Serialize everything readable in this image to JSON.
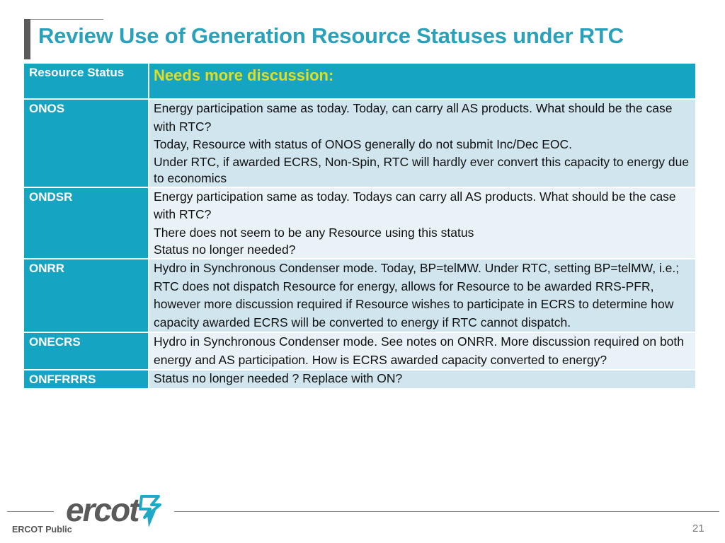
{
  "slide": {
    "title": "Review Use of Generation Resource Statuses under RTC"
  },
  "table": {
    "header": {
      "status_label": "Resource Status",
      "description_label": "Needs more discussion:"
    },
    "rows": [
      {
        "status": "ONOS",
        "lines": [
          "Energy participation same as today. Today, can carry all AS products. What should be the case with RTC?",
          "Today, Resource with status of ONOS generally do not submit Inc/Dec EOC.",
          "Under RTC, if awarded ECRS, Non-Spin, RTC will hardly ever convert this capacity to energy due to economics"
        ]
      },
      {
        "status": "ONDSR",
        "lines": [
          "Energy participation same as today. Todays can carry all AS products. What should be the case with RTC?",
          "There does not seem to be any Resource using this status",
          "Status no longer needed?"
        ]
      },
      {
        "status": "ONRR",
        "lines": [
          "Hydro in Synchronous Condenser mode. Today, BP=telMW. Under RTC, setting BP=telMW, i.e.; RTC does not dispatch Resource for energy, allows for Resource to be awarded RRS-PFR, however more discussion required if Resource wishes to participate in ECRS to determine how capacity awarded ECRS will be converted to energy if RTC cannot dispatch."
        ]
      },
      {
        "status": "ONECRS",
        "lines": [
          "Hydro in Synchronous Condenser mode. See notes on ONRR. More discussion required on both energy and AS participation. How is ECRS awarded capacity converted to energy?"
        ]
      },
      {
        "status": "ONFFRRRS",
        "lines": [
          "Status no longer needed ? Replace with ON?"
        ]
      }
    ]
  },
  "footer": {
    "logo_text": "ercot",
    "label": "ERCOT Public",
    "page_number": "21"
  },
  "colors": {
    "title": "#2aa1bb",
    "header_bg": "#15a4c2",
    "header_highlight": "#e2dd20",
    "row_shade_a": "#d0e5ee",
    "row_shade_b": "#e8f2f7",
    "logo_mark": "#1fa9c6"
  }
}
